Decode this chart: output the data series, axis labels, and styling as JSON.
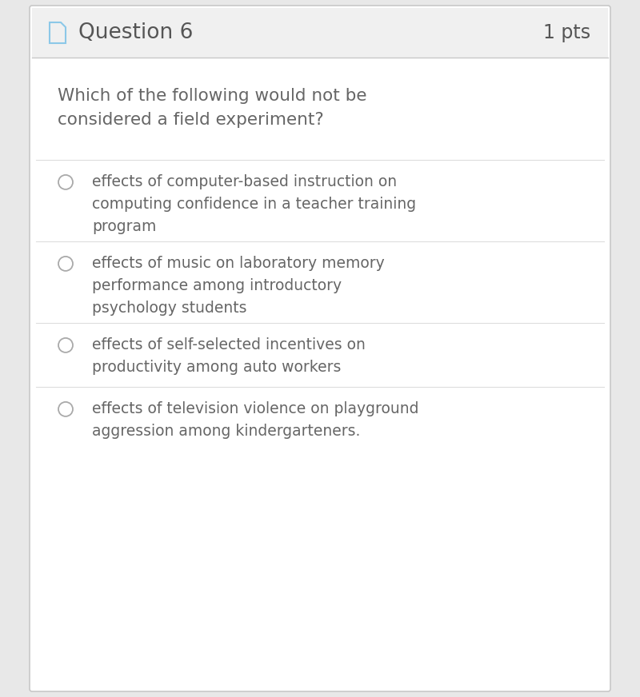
{
  "title": "Question 6",
  "pts": "1 pts",
  "question": "Which of the following would not be\nconsidered a field experiment?",
  "option_texts": [
    "effects of computer-based instruction on\ncomputing confidence in a teacher training\nprogram",
    "effects of music on laboratory memory\nperformance among introductory\npsychology students",
    "effects of self-selected incentives on\nproductivity among auto workers",
    "effects of television violence on playground\naggression among kindergarteners."
  ],
  "bg_color": "#e8e8e8",
  "header_bg": "#f0f0f0",
  "body_bg": "#ffffff",
  "border_color": "#c8c8c8",
  "text_color": "#666666",
  "header_text_color": "#555555",
  "divider_color": "#dddddd",
  "circle_edge_color": "#aaaaaa",
  "font_size_title": 19,
  "font_size_pts": 17,
  "font_size_question": 15.5,
  "font_size_option": 13.5,
  "icon_color": "#8cc8e8"
}
